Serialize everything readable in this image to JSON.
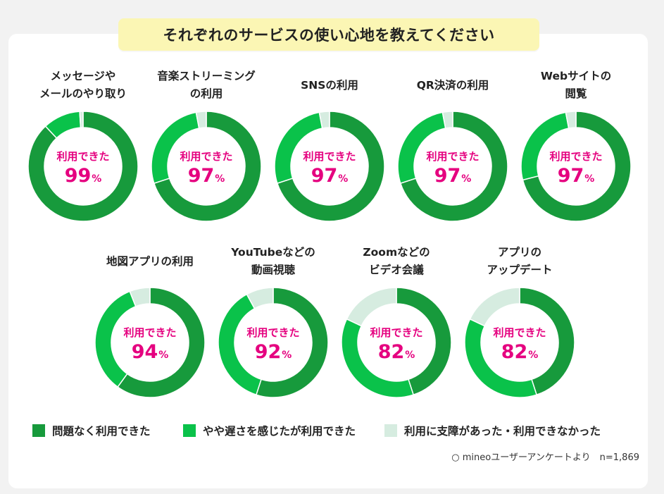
{
  "title": "それぞれのサービスの使い心地を教えてください",
  "center_caption": "利用できた",
  "percent_sign": "%",
  "colors": {
    "no_problem": "#179a3c",
    "slightly_slow": "#0ac24a",
    "had_trouble": "#d6ece0",
    "accent_text": "#e5007f",
    "banner": "#fbf6b4"
  },
  "chart_data": {
    "type": "pie",
    "series_names": [
      "問題なく利用できた",
      "やや遅さを感じたが利用できた",
      "利用に支障があった・利用できなかった"
    ],
    "charts": [
      {
        "label": "メッセージや\nメールのやり取り",
        "usable_percent": "99",
        "values": [
          88,
          11,
          1
        ]
      },
      {
        "label": "音楽ストリーミング\nの利用",
        "usable_percent": "97",
        "values": [
          70,
          27,
          3
        ]
      },
      {
        "label": "SNSの利用",
        "usable_percent": "97",
        "values": [
          70,
          27,
          3
        ]
      },
      {
        "label": "QR決済の利用",
        "usable_percent": "97",
        "values": [
          70,
          27,
          3
        ]
      },
      {
        "label": "Webサイトの\n閲覧",
        "usable_percent": "97",
        "values": [
          71,
          26,
          3
        ]
      },
      {
        "label": "地図アプリの利用",
        "usable_percent": "94",
        "values": [
          60,
          34,
          6
        ]
      },
      {
        "label": "YouTubeなどの\n動画視聴",
        "usable_percent": "92",
        "values": [
          55,
          37,
          8
        ]
      },
      {
        "label": "Zoomなどの\nビデオ会議",
        "usable_percent": "82",
        "values": [
          45,
          37,
          18
        ]
      },
      {
        "label": "アプリの\nアップデート",
        "usable_percent": "82",
        "values": [
          45,
          37,
          18
        ]
      }
    ]
  },
  "legend": [
    {
      "label": "問題なく利用できた",
      "color": "#179a3c"
    },
    {
      "label": "やや遅さを感じたが利用できた",
      "color": "#0ac24a"
    },
    {
      "label": "利用に支障があった・利用できなかった",
      "color": "#d6ece0"
    }
  ],
  "source": "○ mineoユーザーアンケートより　n=1,869"
}
